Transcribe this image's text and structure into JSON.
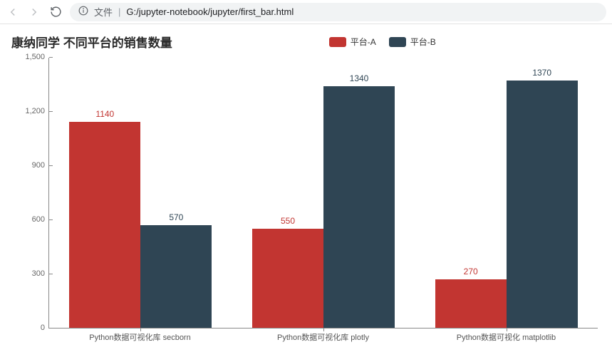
{
  "browser": {
    "file_label": "文件",
    "path": "G:/jupyter-notebook/jupyter/first_bar.html"
  },
  "chart": {
    "type": "bar",
    "title": "康纳同学 不同平台的销售数量",
    "series": [
      {
        "name": "平台-A",
        "color": "#c23531"
      },
      {
        "name": "平台-B",
        "color": "#2f4554"
      }
    ],
    "categories": [
      "Python数据可视化库 secborn",
      "Python数据可视化库 plotly",
      "Python数据可视化 matplotlib"
    ],
    "values_a": [
      1140,
      550,
      270
    ],
    "values_b": [
      570,
      1340,
      1370
    ],
    "ylim": [
      0,
      1500
    ],
    "yticks": [
      0,
      300,
      600,
      900,
      1200,
      1500
    ],
    "ytick_labels": [
      "0",
      "300",
      "600",
      "900",
      "1,200",
      "1,500"
    ],
    "label_color_a": "#c23531",
    "label_color_b": "#2f4554",
    "background_color": "#ffffff",
    "axis_color": "#888888",
    "tick_font_size": 11,
    "title_font_size": 17,
    "legend_font_size": 12,
    "value_label_font_size": 12
  }
}
